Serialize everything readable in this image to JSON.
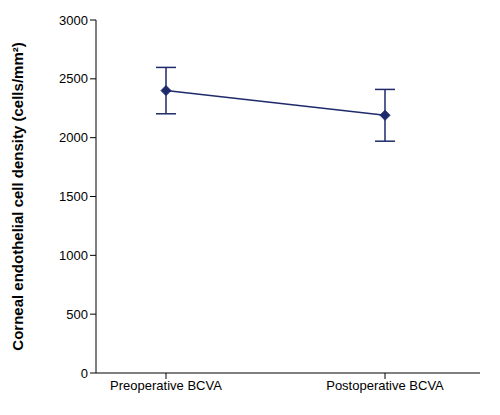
{
  "chart_data": {
    "type": "line",
    "categories": [
      "Preoperative BCVA",
      "Postoperative BCVA"
    ],
    "values": [
      2400,
      2190
    ],
    "errors": [
      197,
      220
    ],
    "color": "#1f2a6b",
    "marker": "diamond",
    "ylabel": "Corneal endothelial cell density (cells/mm²)",
    "ylim": [
      0,
      3000
    ],
    "yticks": [
      0,
      500,
      1000,
      1500,
      2000,
      2500,
      3000
    ],
    "grid": false
  }
}
